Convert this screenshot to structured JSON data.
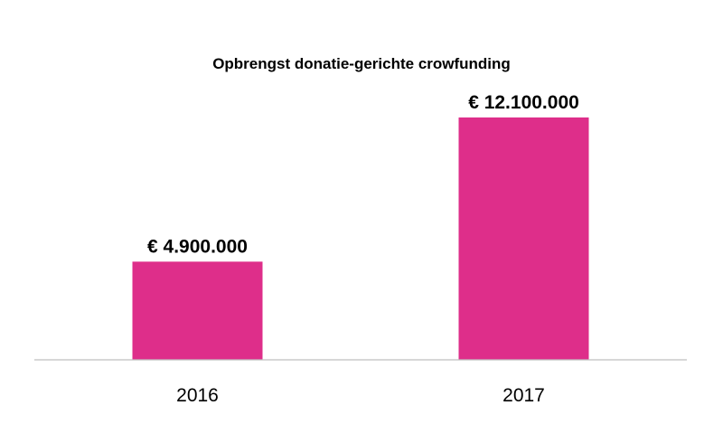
{
  "chart_data": {
    "type": "bar",
    "title": "Opbrengst donatie-gerichte crowfunding",
    "xlabel": "",
    "ylabel": "",
    "categories": [
      "2016",
      "2017"
    ],
    "values": [
      4900000,
      12100000
    ],
    "data_labels": [
      "€ 4.900.000",
      "€ 12.100.000"
    ],
    "ylim": [
      0,
      13000000
    ],
    "grid": false,
    "legend": "none",
    "bar_color": "#de2e8a",
    "axis_color": "#bfbfbf"
  }
}
